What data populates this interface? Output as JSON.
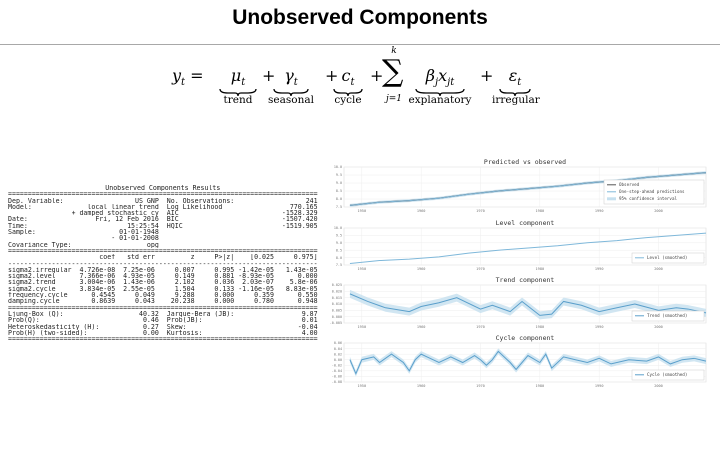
{
  "slide": {
    "title": "Unobserved Components"
  },
  "equation": {
    "lhs": "y",
    "lhs_sub": "t",
    "terms": [
      {
        "symbol": "μ",
        "sub": "t",
        "label": "trend"
      },
      {
        "symbol": "γ",
        "sub": "t",
        "label": "seasonal"
      },
      {
        "symbol": "c",
        "sub": "t",
        "label": "cycle"
      },
      {
        "symbol": "β",
        "sub": "j",
        "symbol2": "x",
        "sub2": "jt",
        "label": "explanatory"
      },
      {
        "symbol": "ε",
        "sub": "t",
        "label": "irregular"
      }
    ],
    "sum_upper": "k",
    "sum_lower": "j=1"
  },
  "results": {
    "title": "Unobserved Components Results",
    "info": [
      [
        "Dep. Variable:",
        "US GNP",
        "No. Observations:",
        "241"
      ],
      [
        "Model:",
        "local linear trend",
        "Log Likelihood",
        "770.165"
      ],
      [
        "",
        "+ damped stochastic cycle",
        "AIC",
        "-1528.329"
      ],
      [
        "Date:",
        "Fri, 12 Feb 2016",
        "BIC",
        "-1507.420"
      ],
      [
        "Time:",
        "15:25:54",
        "HQIC",
        "-1519.905"
      ],
      [
        "Sample:",
        "01-01-1948",
        "",
        ""
      ],
      [
        "",
        "- 01-01-2008",
        "",
        ""
      ],
      [
        "Covariance Type:",
        "opg",
        "",
        ""
      ]
    ],
    "param_headers": [
      "",
      "coef",
      "std err",
      "z",
      "P>|z|",
      "[0.025",
      "0.975]"
    ],
    "params": [
      [
        "sigma2.irregular",
        "4.726e-08",
        "7.25e-06",
        "0.007",
        "0.995",
        "-1.42e-05",
        "1.43e-05"
      ],
      [
        "sigma2.level",
        "7.366e-06",
        "4.93e-05",
        "0.149",
        "0.881",
        "-8.93e-05",
        "0.000"
      ],
      [
        "sigma2.trend",
        "3.004e-06",
        "1.43e-06",
        "2.102",
        "0.036",
        "2.03e-07",
        "5.8e-06"
      ],
      [
        "sigma2.cycle",
        "3.834e-05",
        "2.55e-05",
        "1.504",
        "0.133",
        "-1.16e-05",
        "8.83e-05"
      ],
      [
        "frequency.cycle",
        "0.4545",
        "0.049",
        "9.288",
        "0.000",
        "0.359",
        "0.550"
      ],
      [
        "damping.cycle",
        "0.8639",
        "0.043",
        "20.238",
        "0.000",
        "0.780",
        "0.948"
      ]
    ],
    "diagnostics": [
      [
        "Ljung-Box (Q):",
        "40.32",
        "Jarque-Bera (JB):",
        "9.87"
      ],
      [
        "Prob(Q):",
        "0.46",
        "Prob(JB):",
        "0.01"
      ],
      [
        "Heteroskedasticity (H):",
        "0.27",
        "Skew:",
        "-0.04"
      ],
      [
        "Prob(H) (two-sided):",
        "0.00",
        "Kurtosis:",
        "4.00"
      ]
    ]
  },
  "chart_data": [
    {
      "type": "line",
      "title": "Predicted vs observed",
      "x": [
        1948,
        1953,
        1958,
        1963,
        1968,
        1973,
        1978,
        1983,
        1988,
        1993,
        1998,
        2003,
        2008
      ],
      "series": [
        {
          "name": "Observed",
          "values": [
            7.6,
            7.8,
            7.9,
            8.05,
            8.3,
            8.5,
            8.65,
            8.8,
            9.0,
            9.15,
            9.35,
            9.5,
            9.65
          ]
        },
        {
          "name": "One-step-ahead predictions",
          "values": [
            7.6,
            7.8,
            7.9,
            8.05,
            8.3,
            8.5,
            8.65,
            8.8,
            9.0,
            9.15,
            9.35,
            9.5,
            9.65
          ]
        }
      ],
      "band_name": "95% confidence interval",
      "xticks": [
        "1950",
        "1960",
        "1970",
        "1980",
        "1990",
        "2000"
      ],
      "yticks": [
        "7.5",
        "8.0",
        "8.5",
        "9.0",
        "9.5",
        "10.0"
      ],
      "ylim": [
        7.5,
        10.0
      ],
      "legend": "right",
      "colors": {
        "observed": "#555555",
        "predicted": "#7fb8da",
        "band": "#c6e0ef"
      }
    },
    {
      "type": "line",
      "title": "Level component",
      "x": [
        1948,
        1953,
        1958,
        1963,
        1968,
        1973,
        1978,
        1983,
        1988,
        1993,
        1998,
        2003,
        2008
      ],
      "series": [
        {
          "name": "Level (smoothed)",
          "values": [
            7.6,
            7.8,
            7.9,
            8.05,
            8.3,
            8.5,
            8.65,
            8.8,
            9.0,
            9.15,
            9.35,
            9.5,
            9.65
          ]
        }
      ],
      "xticks": [
        "1950",
        "1960",
        "1970",
        "1980",
        "1990",
        "2000"
      ],
      "yticks": [
        "7.5",
        "8.0",
        "8.5",
        "9.0",
        "9.5",
        "10.0"
      ],
      "ylim": [
        7.5,
        10.0
      ],
      "legend": "bottom-right",
      "colors": {
        "line": "#7fb8da"
      }
    },
    {
      "type": "area",
      "title": "Trend component",
      "x": [
        1948,
        1951,
        1954,
        1958,
        1960,
        1963,
        1966,
        1970,
        1972,
        1975,
        1977,
        1980,
        1982,
        1984,
        1987,
        1990,
        1993,
        1996,
        2000,
        2003,
        2005,
        2008
      ],
      "series": [
        {
          "name": "Trend (smoothed)",
          "values": [
            0.018,
            0.012,
            0.007,
            0.004,
            0.008,
            0.011,
            0.015,
            0.006,
            0.009,
            0.004,
            0.012,
            0.001,
            0.002,
            0.012,
            0.009,
            0.004,
            0.007,
            0.01,
            0.005,
            0.007,
            0.006,
            0.003
          ]
        }
      ],
      "xticks": [
        "1950",
        "1960",
        "1970",
        "1980",
        "1990",
        "2000"
      ],
      "yticks": [
        "-0.005",
        "0.000",
        "0.005",
        "0.010",
        "0.015",
        "0.020",
        "0.025"
      ],
      "ylim": [
        -0.005,
        0.025
      ],
      "legend": "bottom-right",
      "colors": {
        "line": "#5a9fcb",
        "band": "#c6e0ef"
      }
    },
    {
      "type": "area",
      "title": "Cycle component",
      "x": [
        1948,
        1949,
        1950,
        1952,
        1953,
        1955,
        1957,
        1958,
        1959,
        1960,
        1961,
        1963,
        1965,
        1967,
        1969,
        1970,
        1971,
        1972,
        1973,
        1975,
        1976,
        1978,
        1980,
        1981,
        1982,
        1984,
        1986,
        1988,
        1990,
        1992,
        1995,
        1998,
        2000,
        2002,
        2004,
        2006,
        2008
      ],
      "series": [
        {
          "name": "Cycle (smoothed)",
          "values": [
            0.0,
            -0.05,
            0.0,
            0.01,
            -0.01,
            0.02,
            -0.01,
            -0.04,
            0.0,
            0.02,
            0.01,
            -0.01,
            0.01,
            -0.01,
            0.015,
            0.0,
            -0.02,
            0.0,
            0.03,
            -0.01,
            -0.035,
            0.015,
            -0.01,
            0.02,
            -0.03,
            0.01,
            0.0,
            -0.01,
            0.005,
            -0.015,
            0.0,
            -0.005,
            0.01,
            -0.015,
            0.0,
            0.005,
            -0.005
          ]
        }
      ],
      "xticks": [
        "1950",
        "1960",
        "1970",
        "1980",
        "1990",
        "2000"
      ],
      "yticks": [
        "-0.08",
        "-0.06",
        "-0.04",
        "-0.02",
        "0.00",
        "0.02",
        "0.04",
        "0.06"
      ],
      "ylim": [
        -0.08,
        0.06
      ],
      "legend": "bottom-right",
      "colors": {
        "line": "#5a9fcb",
        "band": "#c6e0ef"
      }
    }
  ]
}
